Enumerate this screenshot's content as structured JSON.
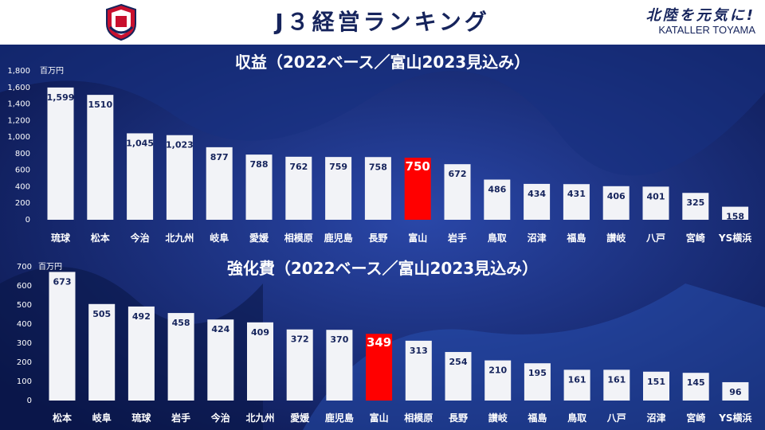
{
  "header": {
    "title": "J３経営ランキング",
    "slogan": "北陸を元気に!",
    "team": "KATALLER TOYAMA"
  },
  "colors": {
    "background": "#0f1e63",
    "bar": "#f2f3f7",
    "highlight": "#ff0000",
    "text_dark": "#16245c"
  },
  "chart_data": [
    {
      "type": "bar",
      "title": "収益（2022ベース／富山2023見込み）",
      "unit": "百万円",
      "ylim": [
        0,
        1800
      ],
      "yticks": [
        0,
        200,
        400,
        600,
        800,
        1000,
        1200,
        1400,
        1600,
        1800
      ],
      "ytick_labels": [
        "0",
        "200",
        "400",
        "600",
        "800",
        "1,000",
        "1,200",
        "1,400",
        "1,600",
        "1,800"
      ],
      "categories": [
        "琉球",
        "松本",
        "今治",
        "北九州",
        "岐阜",
        "愛媛",
        "相模原",
        "鹿児島",
        "長野",
        "富山",
        "岩手",
        "鳥取",
        "沼津",
        "福島",
        "讃岐",
        "八戸",
        "宮崎",
        "YS横浜"
      ],
      "values": [
        1599,
        1510,
        1045,
        1023,
        877,
        788,
        762,
        759,
        758,
        750,
        672,
        486,
        434,
        431,
        406,
        401,
        325,
        158
      ],
      "labels": [
        "1,599",
        "1510",
        "1,045",
        "1,023",
        "877",
        "788",
        "762",
        "759",
        "758",
        "750",
        "672",
        "486",
        "434",
        "431",
        "406",
        "401",
        "325",
        "158"
      ],
      "highlight": "富山",
      "grid": false
    },
    {
      "type": "bar",
      "title": "強化費（2022ベース／富山2023見込み）",
      "unit": "百万円",
      "ylim": [
        0,
        700
      ],
      "yticks": [
        0,
        100,
        200,
        300,
        400,
        500,
        600,
        700
      ],
      "ytick_labels": [
        "0",
        "100",
        "200",
        "300",
        "400",
        "500",
        "600",
        "700"
      ],
      "categories": [
        "松本",
        "岐阜",
        "琉球",
        "岩手",
        "今治",
        "北九州",
        "愛媛",
        "鹿児島",
        "富山",
        "相模原",
        "長野",
        "讃岐",
        "福島",
        "鳥取",
        "八戸",
        "沼津",
        "宮崎",
        "YS横浜"
      ],
      "values": [
        673,
        505,
        492,
        458,
        424,
        409,
        372,
        370,
        349,
        313,
        254,
        210,
        195,
        161,
        161,
        151,
        145,
        96
      ],
      "labels": [
        "673",
        "505",
        "492",
        "458",
        "424",
        "409",
        "372",
        "370",
        "349",
        "313",
        "254",
        "210",
        "195",
        "161",
        "161",
        "151",
        "145",
        "96"
      ],
      "highlight": "富山",
      "grid": false
    }
  ]
}
